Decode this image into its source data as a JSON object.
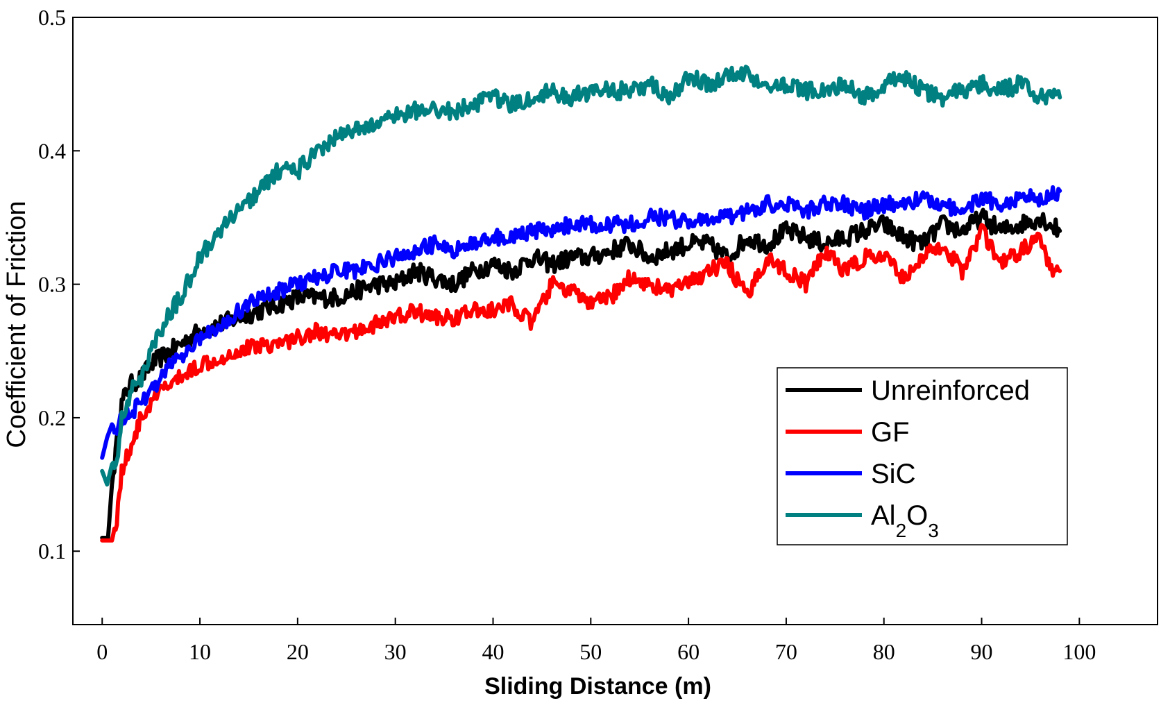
{
  "chart_data": {
    "type": "line",
    "title": "",
    "xlabel": "Sliding Distance (m)",
    "ylabel": "Coefficient of Friction",
    "xlim": [
      -3,
      108
    ],
    "ylim": [
      0.045,
      0.5
    ],
    "x_ticks": [
      0,
      10,
      20,
      30,
      40,
      50,
      60,
      70,
      80,
      90,
      100
    ],
    "y_ticks": [
      0.1,
      0.2,
      0.3,
      0.4,
      0.5
    ],
    "grid": false,
    "legend": {
      "position": "right"
    },
    "series": [
      {
        "name": "Unreinforced",
        "color": "#000000",
        "x": [
          0,
          0.3,
          0.6,
          1,
          1.5,
          2,
          2.5,
          3,
          4,
          5,
          6,
          7,
          8,
          9,
          10,
          12,
          14,
          16,
          18,
          20,
          22,
          24,
          26,
          28,
          30,
          32,
          34,
          36,
          38,
          40,
          42,
          44,
          46,
          48,
          50,
          52,
          54,
          56,
          58,
          60,
          62,
          64,
          66,
          68,
          70,
          72,
          74,
          76,
          78,
          80,
          82,
          84,
          86,
          88,
          90,
          92,
          94,
          96,
          98
        ],
        "y": [
          0.11,
          0.11,
          0.11,
          0.15,
          0.18,
          0.21,
          0.22,
          0.225,
          0.23,
          0.24,
          0.245,
          0.25,
          0.255,
          0.26,
          0.265,
          0.27,
          0.275,
          0.28,
          0.285,
          0.29,
          0.29,
          0.29,
          0.295,
          0.3,
          0.3,
          0.31,
          0.305,
          0.3,
          0.31,
          0.315,
          0.31,
          0.32,
          0.315,
          0.32,
          0.32,
          0.325,
          0.33,
          0.32,
          0.325,
          0.33,
          0.33,
          0.32,
          0.335,
          0.33,
          0.34,
          0.335,
          0.33,
          0.335,
          0.34,
          0.345,
          0.335,
          0.33,
          0.345,
          0.34,
          0.35,
          0.34,
          0.345,
          0.35,
          0.34
        ]
      },
      {
        "name": "GF",
        "color": "#ff0000",
        "x": [
          0,
          0.5,
          1,
          1.5,
          2,
          2.5,
          3,
          3.5,
          4,
          5,
          6,
          7,
          8,
          9,
          10,
          12,
          14,
          16,
          18,
          20,
          22,
          24,
          26,
          28,
          30,
          32,
          34,
          36,
          38,
          40,
          42,
          44,
          46,
          48,
          50,
          52,
          54,
          56,
          58,
          60,
          62,
          64,
          66,
          68,
          70,
          72,
          74,
          76,
          78,
          80,
          82,
          84,
          86,
          88,
          90,
          92,
          94,
          96,
          97,
          98
        ],
        "y": [
          0.108,
          0.108,
          0.108,
          0.125,
          0.16,
          0.17,
          0.18,
          0.19,
          0.2,
          0.21,
          0.22,
          0.225,
          0.23,
          0.235,
          0.24,
          0.245,
          0.25,
          0.255,
          0.255,
          0.26,
          0.265,
          0.26,
          0.265,
          0.27,
          0.275,
          0.28,
          0.275,
          0.275,
          0.28,
          0.28,
          0.285,
          0.27,
          0.3,
          0.295,
          0.285,
          0.29,
          0.305,
          0.3,
          0.295,
          0.3,
          0.31,
          0.315,
          0.29,
          0.32,
          0.31,
          0.3,
          0.325,
          0.31,
          0.32,
          0.32,
          0.305,
          0.32,
          0.33,
          0.31,
          0.34,
          0.315,
          0.325,
          0.335,
          0.31,
          0.31
        ]
      },
      {
        "name": "SiC",
        "color": "#0000ff",
        "x": [
          0,
          0.5,
          1,
          1.5,
          2,
          3,
          4,
          5,
          6,
          7,
          8,
          10,
          12,
          14,
          16,
          18,
          20,
          22,
          24,
          26,
          28,
          30,
          32,
          34,
          36,
          38,
          40,
          42,
          44,
          46,
          48,
          50,
          52,
          54,
          56,
          58,
          60,
          62,
          64,
          66,
          68,
          70,
          72,
          74,
          76,
          78,
          80,
          82,
          84,
          86,
          88,
          90,
          92,
          94,
          96,
          98
        ],
        "y": [
          0.17,
          0.185,
          0.195,
          0.19,
          0.2,
          0.205,
          0.21,
          0.22,
          0.23,
          0.24,
          0.245,
          0.26,
          0.27,
          0.28,
          0.29,
          0.295,
          0.3,
          0.305,
          0.31,
          0.31,
          0.315,
          0.32,
          0.325,
          0.33,
          0.325,
          0.33,
          0.335,
          0.335,
          0.34,
          0.34,
          0.345,
          0.345,
          0.345,
          0.345,
          0.35,
          0.35,
          0.345,
          0.35,
          0.35,
          0.355,
          0.36,
          0.36,
          0.355,
          0.36,
          0.36,
          0.355,
          0.36,
          0.36,
          0.365,
          0.36,
          0.355,
          0.365,
          0.36,
          0.365,
          0.365,
          0.37
        ]
      },
      {
        "name": "Al2O3",
        "color": "#008080",
        "x": [
          0,
          0.5,
          1,
          1.5,
          2,
          3,
          4,
          5,
          6,
          7,
          8,
          9,
          10,
          12,
          14,
          16,
          18,
          20,
          22,
          24,
          26,
          28,
          30,
          32,
          34,
          36,
          38,
          40,
          42,
          44,
          46,
          48,
          50,
          52,
          54,
          56,
          58,
          60,
          62,
          64,
          66,
          68,
          70,
          72,
          74,
          76,
          78,
          80,
          82,
          84,
          86,
          88,
          90,
          92,
          94,
          96,
          98
        ],
        "y": [
          0.16,
          0.15,
          0.165,
          0.17,
          0.2,
          0.22,
          0.23,
          0.25,
          0.265,
          0.28,
          0.29,
          0.305,
          0.32,
          0.34,
          0.355,
          0.37,
          0.385,
          0.385,
          0.4,
          0.41,
          0.415,
          0.42,
          0.425,
          0.43,
          0.43,
          0.43,
          0.435,
          0.44,
          0.435,
          0.44,
          0.445,
          0.44,
          0.445,
          0.445,
          0.445,
          0.45,
          0.44,
          0.455,
          0.45,
          0.455,
          0.46,
          0.445,
          0.45,
          0.445,
          0.445,
          0.45,
          0.44,
          0.45,
          0.455,
          0.445,
          0.44,
          0.445,
          0.45,
          0.445,
          0.45,
          0.44,
          0.44
        ]
      }
    ]
  },
  "legend_labels": {
    "al_base": "Al",
    "al_sub2": "2",
    "o_base": "O",
    "o_sub3": "3"
  }
}
